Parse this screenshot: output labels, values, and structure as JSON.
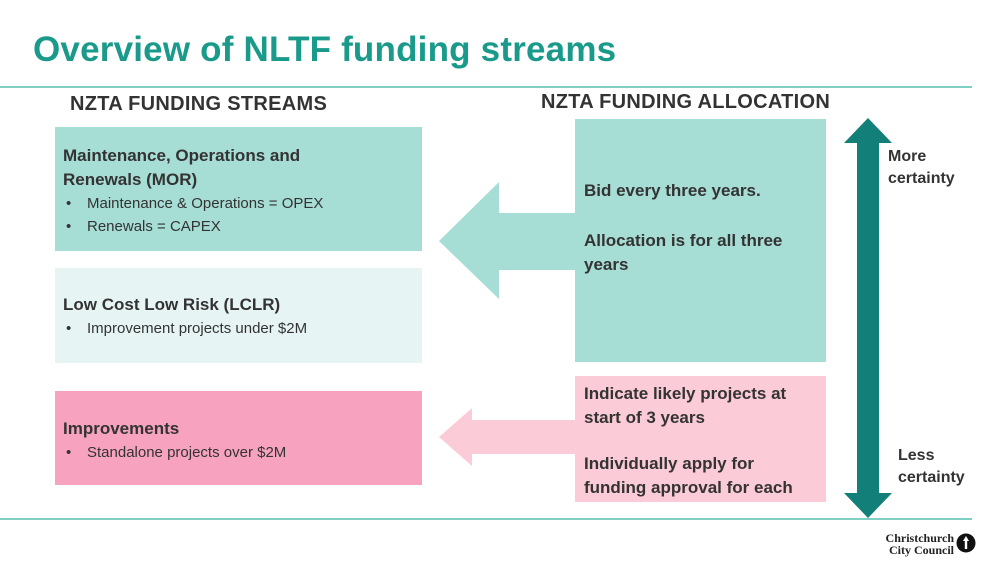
{
  "title": "Overview of NLTF funding streams",
  "left_heading": "NZTA FUNDING STREAMS",
  "right_heading": "NZTA FUNDING ALLOCATION",
  "streams": [
    {
      "title_line1": "Maintenance, Operations and",
      "title_line2": "Renewals (MOR)",
      "bullets": [
        "Maintenance & Operations = OPEX",
        "Renewals = CAPEX"
      ],
      "color": "#a6ddd5"
    },
    {
      "title": "Low Cost Low Risk (LCLR)",
      "bullets": [
        "Improvement projects under $2M"
      ],
      "color": "#e6f5f3"
    },
    {
      "title": "Improvements",
      "bullets": [
        "Standalone projects over $2M"
      ],
      "color": "#f7a3bf"
    }
  ],
  "allocation_top": {
    "line1": "Bid every three years.",
    "line2": "Allocation is for all three years",
    "color": "#a6ddd5"
  },
  "allocation_bottom": {
    "line1": "Indicate likely projects at start of 3 years",
    "line2": "Individually apply for funding approval for each",
    "color": "#fccbd8"
  },
  "certainty": {
    "top": "More certainty",
    "bottom": "Less certainty",
    "arrow_color": "#127f78"
  },
  "logo": {
    "line1": "Christchurch",
    "line2": "City Council"
  }
}
